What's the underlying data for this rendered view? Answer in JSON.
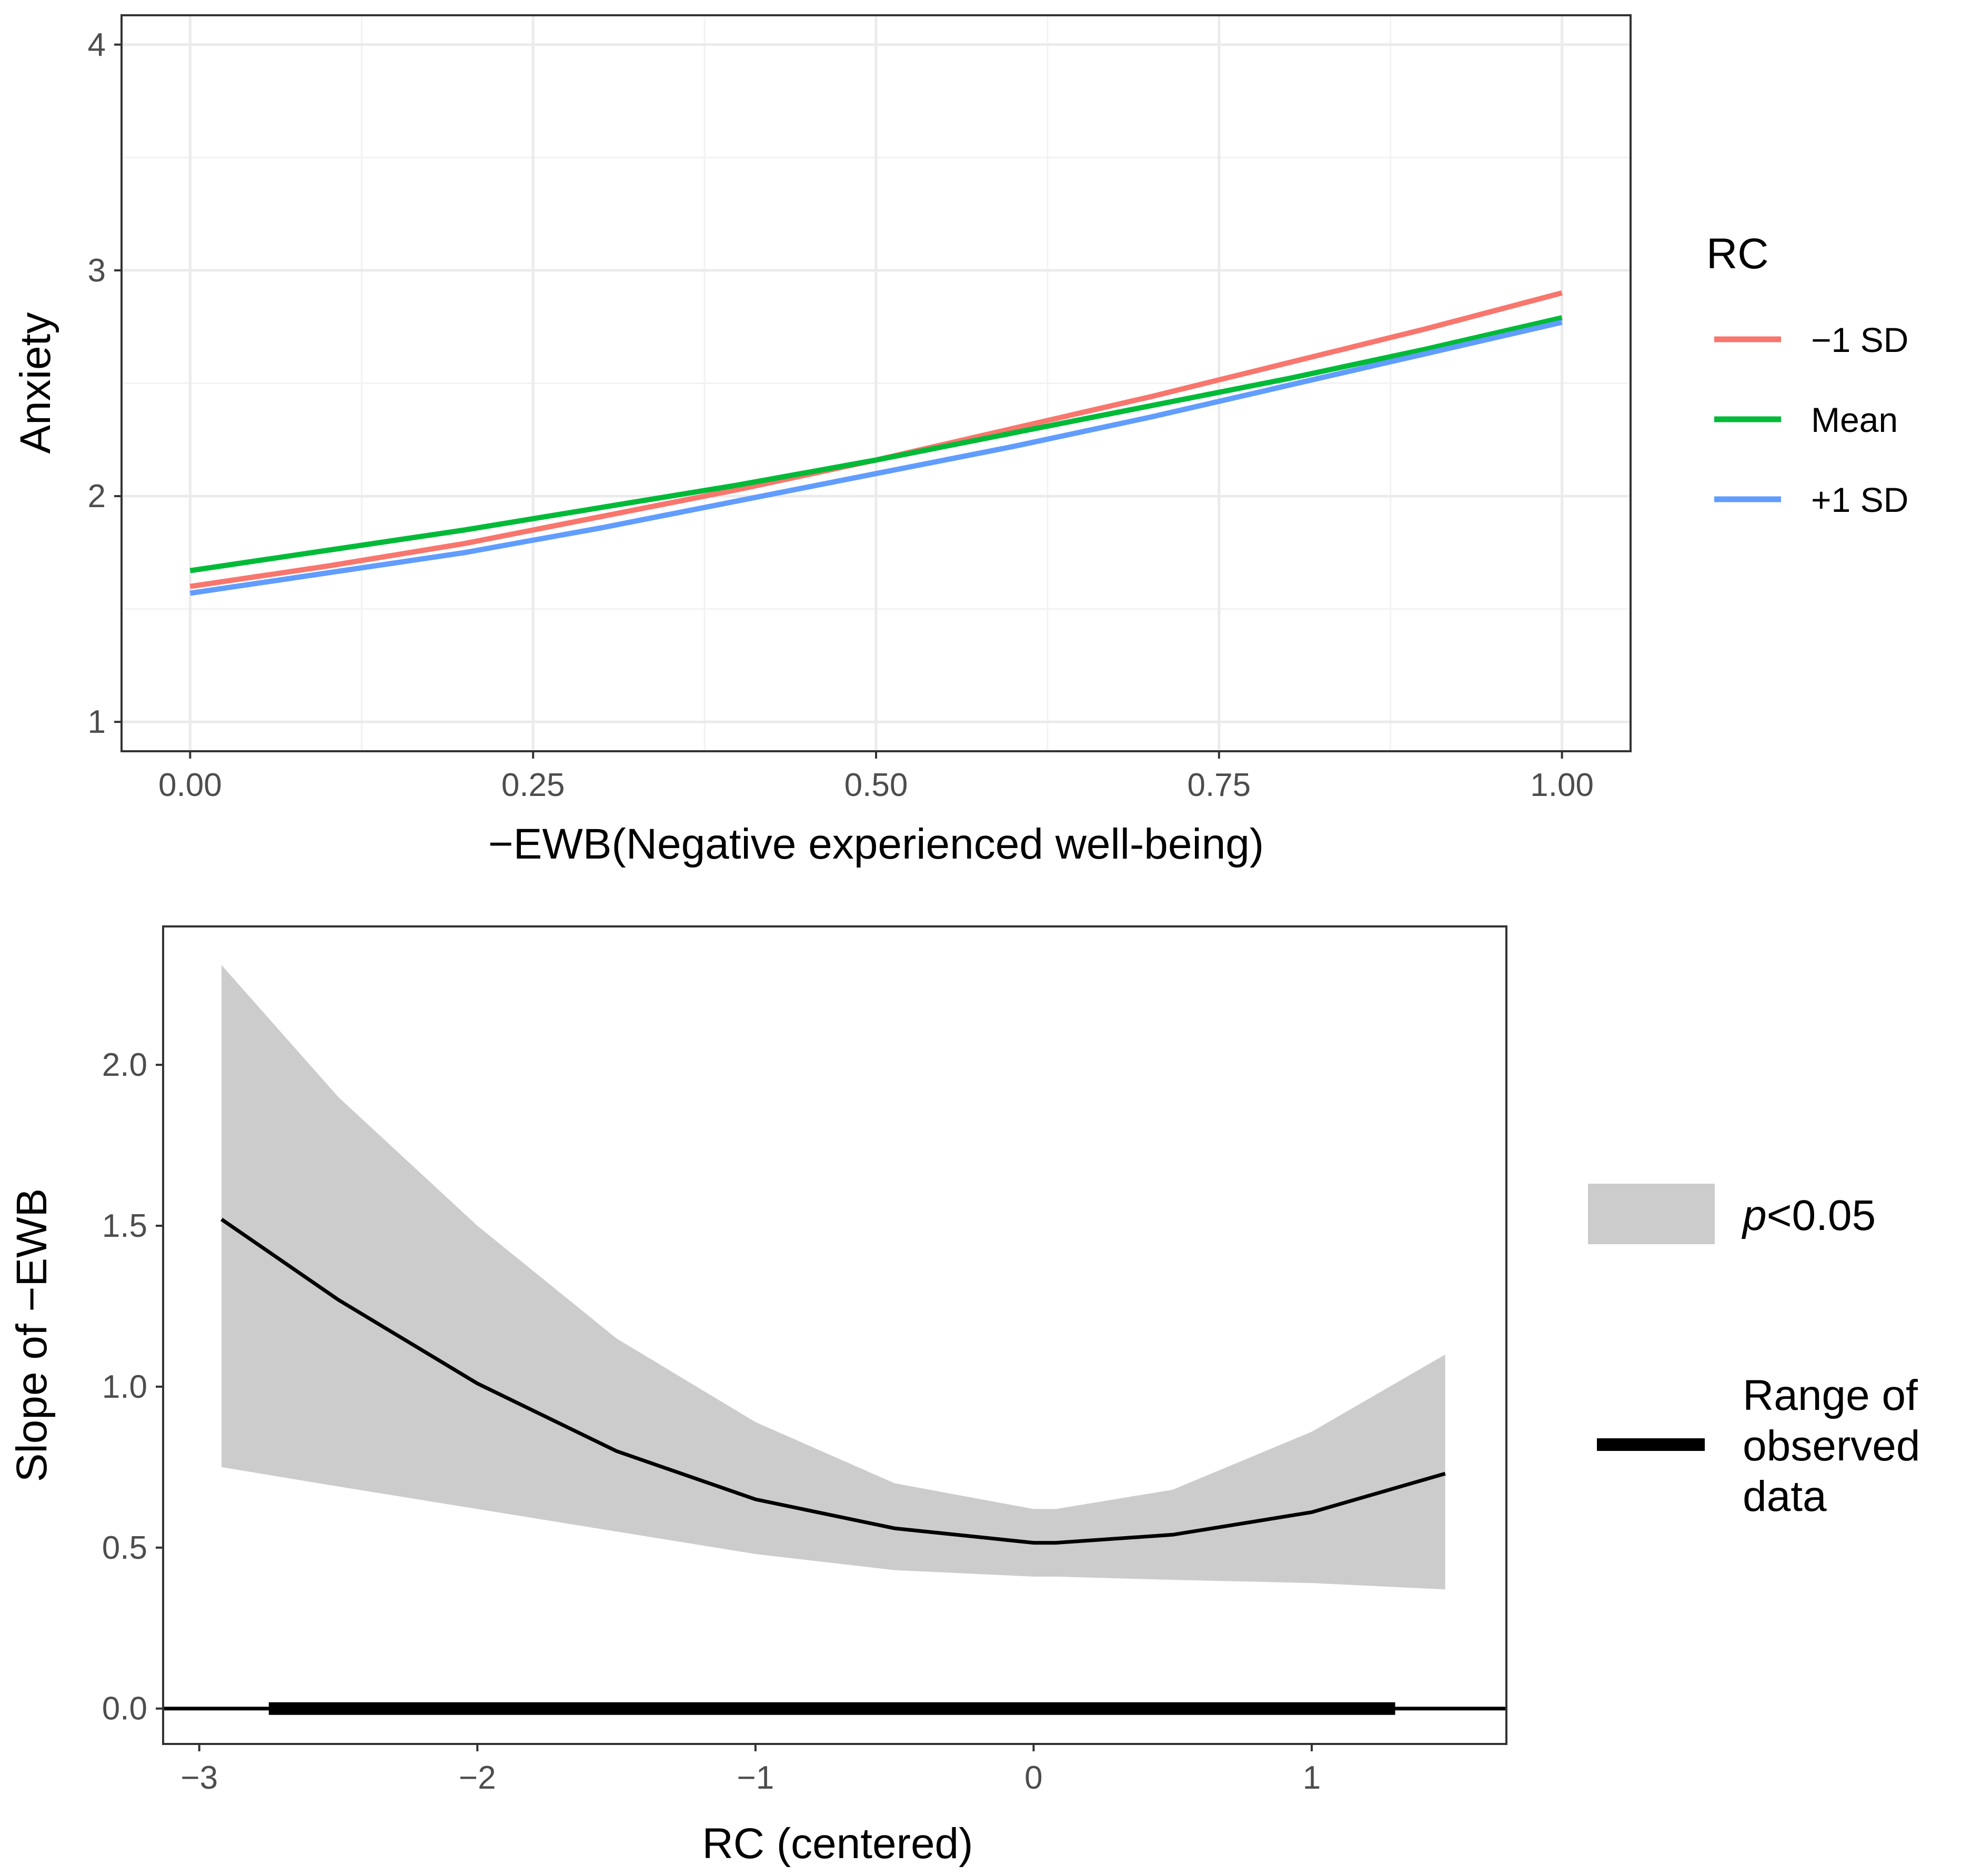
{
  "chart_data": [
    {
      "type": "line",
      "xlabel": "−EWB(Negative experienced well-being)",
      "ylabel": "Anxiety",
      "xlim": [
        -0.05,
        1.05
      ],
      "ylim": [
        0.87,
        4.13
      ],
      "x_ticks": [
        0,
        0.25,
        0.5,
        0.75,
        1
      ],
      "x_tick_labels": [
        "0.00",
        "0.25",
        "0.50",
        "0.75",
        "1.00"
      ],
      "y_ticks": [
        1,
        2,
        3,
        4
      ],
      "y_tick_labels": [
        "1",
        "2",
        "3",
        "4"
      ],
      "grid": true,
      "legend": {
        "title": "RC",
        "position": "right"
      },
      "x": [
        0,
        0.1,
        0.2,
        0.3,
        0.4,
        0.5,
        0.6,
        0.7,
        0.8,
        0.9,
        1.0
      ],
      "series": [
        {
          "name": "−1 SD",
          "color": "#F8766D",
          "values": [
            1.6,
            1.69,
            1.79,
            1.91,
            2.03,
            2.16,
            2.3,
            2.44,
            2.59,
            2.74,
            2.9
          ]
        },
        {
          "name": "Mean",
          "color": "#00BA38",
          "values": [
            1.67,
            1.76,
            1.85,
            1.95,
            2.05,
            2.16,
            2.28,
            2.4,
            2.52,
            2.65,
            2.79
          ]
        },
        {
          "name": "+1 SD",
          "color": "#619CFF",
          "values": [
            1.57,
            1.66,
            1.75,
            1.86,
            1.98,
            2.1,
            2.22,
            2.35,
            2.49,
            2.63,
            2.77
          ]
        }
      ]
    },
    {
      "type": "line",
      "xlabel": "RC (centered)",
      "ylabel": "Slope of −EWB",
      "xlim": [
        -3.13,
        1.7
      ],
      "ylim": [
        -0.11,
        2.43
      ],
      "x_ticks": [
        -3,
        -2,
        -1,
        0,
        1
      ],
      "x_tick_labels": [
        "−3",
        "−2",
        "−1",
        "0",
        "1"
      ],
      "y_ticks": [
        0,
        0.5,
        1,
        1.5,
        2
      ],
      "y_tick_labels": [
        "0.0",
        "0.5",
        "1.0",
        "1.5",
        "2.0"
      ],
      "grid": false,
      "legend": {
        "position": "right"
      },
      "x": [
        -2.92,
        -2.5,
        -2.0,
        -1.5,
        -1.0,
        -0.5,
        0.0,
        0.08,
        0.5,
        1.0,
        1.48
      ],
      "slope": [
        1.52,
        1.27,
        1.01,
        0.8,
        0.65,
        0.56,
        0.515,
        0.515,
        0.54,
        0.61,
        0.73
      ],
      "ci_upper": [
        2.31,
        1.9,
        1.5,
        1.15,
        0.89,
        0.7,
        0.62,
        0.62,
        0.68,
        0.86,
        1.1
      ],
      "ci_lower": [
        0.75,
        0.69,
        0.62,
        0.55,
        0.48,
        0.43,
        0.41,
        0.41,
        0.4,
        0.39,
        0.37
      ],
      "zero_line": 0,
      "observed_range": [
        -2.75,
        1.3
      ],
      "band_label_prefix": "p",
      "band_label_suffix": "<0.05",
      "range_label": [
        "Range of",
        "observed",
        "data"
      ]
    }
  ]
}
